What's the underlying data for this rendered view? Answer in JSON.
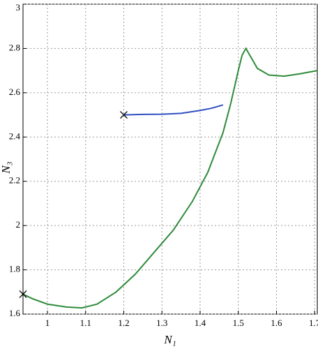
{
  "chart_data": {
    "type": "line",
    "xlabel": "N₁",
    "ylabel": "N₃",
    "xlim": [
      0.936,
      1.707
    ],
    "ylim": [
      1.6,
      3
    ],
    "xticks": [
      1,
      1.1,
      1.2,
      1.3,
      1.4,
      1.5,
      1.6,
      1.7
    ],
    "yticks": [
      1.6,
      1.8,
      2,
      2.2,
      2.4,
      2.6,
      2.8,
      3
    ],
    "grid": true,
    "series": [
      {
        "color": "#2e8b3a",
        "x": [
          0.936,
          0.96,
          1.0,
          1.05,
          1.09,
          1.13,
          1.18,
          1.23,
          1.28,
          1.33,
          1.38,
          1.42,
          1.46,
          1.48,
          1.5,
          1.51,
          1.52,
          1.53,
          1.55,
          1.58,
          1.62,
          1.66,
          1.707
        ],
        "values": [
          1.69,
          1.67,
          1.645,
          1.632,
          1.628,
          1.645,
          1.7,
          1.78,
          1.88,
          1.98,
          2.11,
          2.24,
          2.42,
          2.55,
          2.7,
          2.77,
          2.8,
          2.77,
          2.71,
          2.68,
          2.675,
          2.685,
          2.7
        ]
      },
      {
        "color": "#3050c0",
        "x": [
          1.2,
          1.25,
          1.3,
          1.35,
          1.4,
          1.43,
          1.46
        ],
        "values": [
          2.5,
          2.502,
          2.503,
          2.507,
          2.52,
          2.53,
          2.545
        ]
      }
    ]
  }
}
